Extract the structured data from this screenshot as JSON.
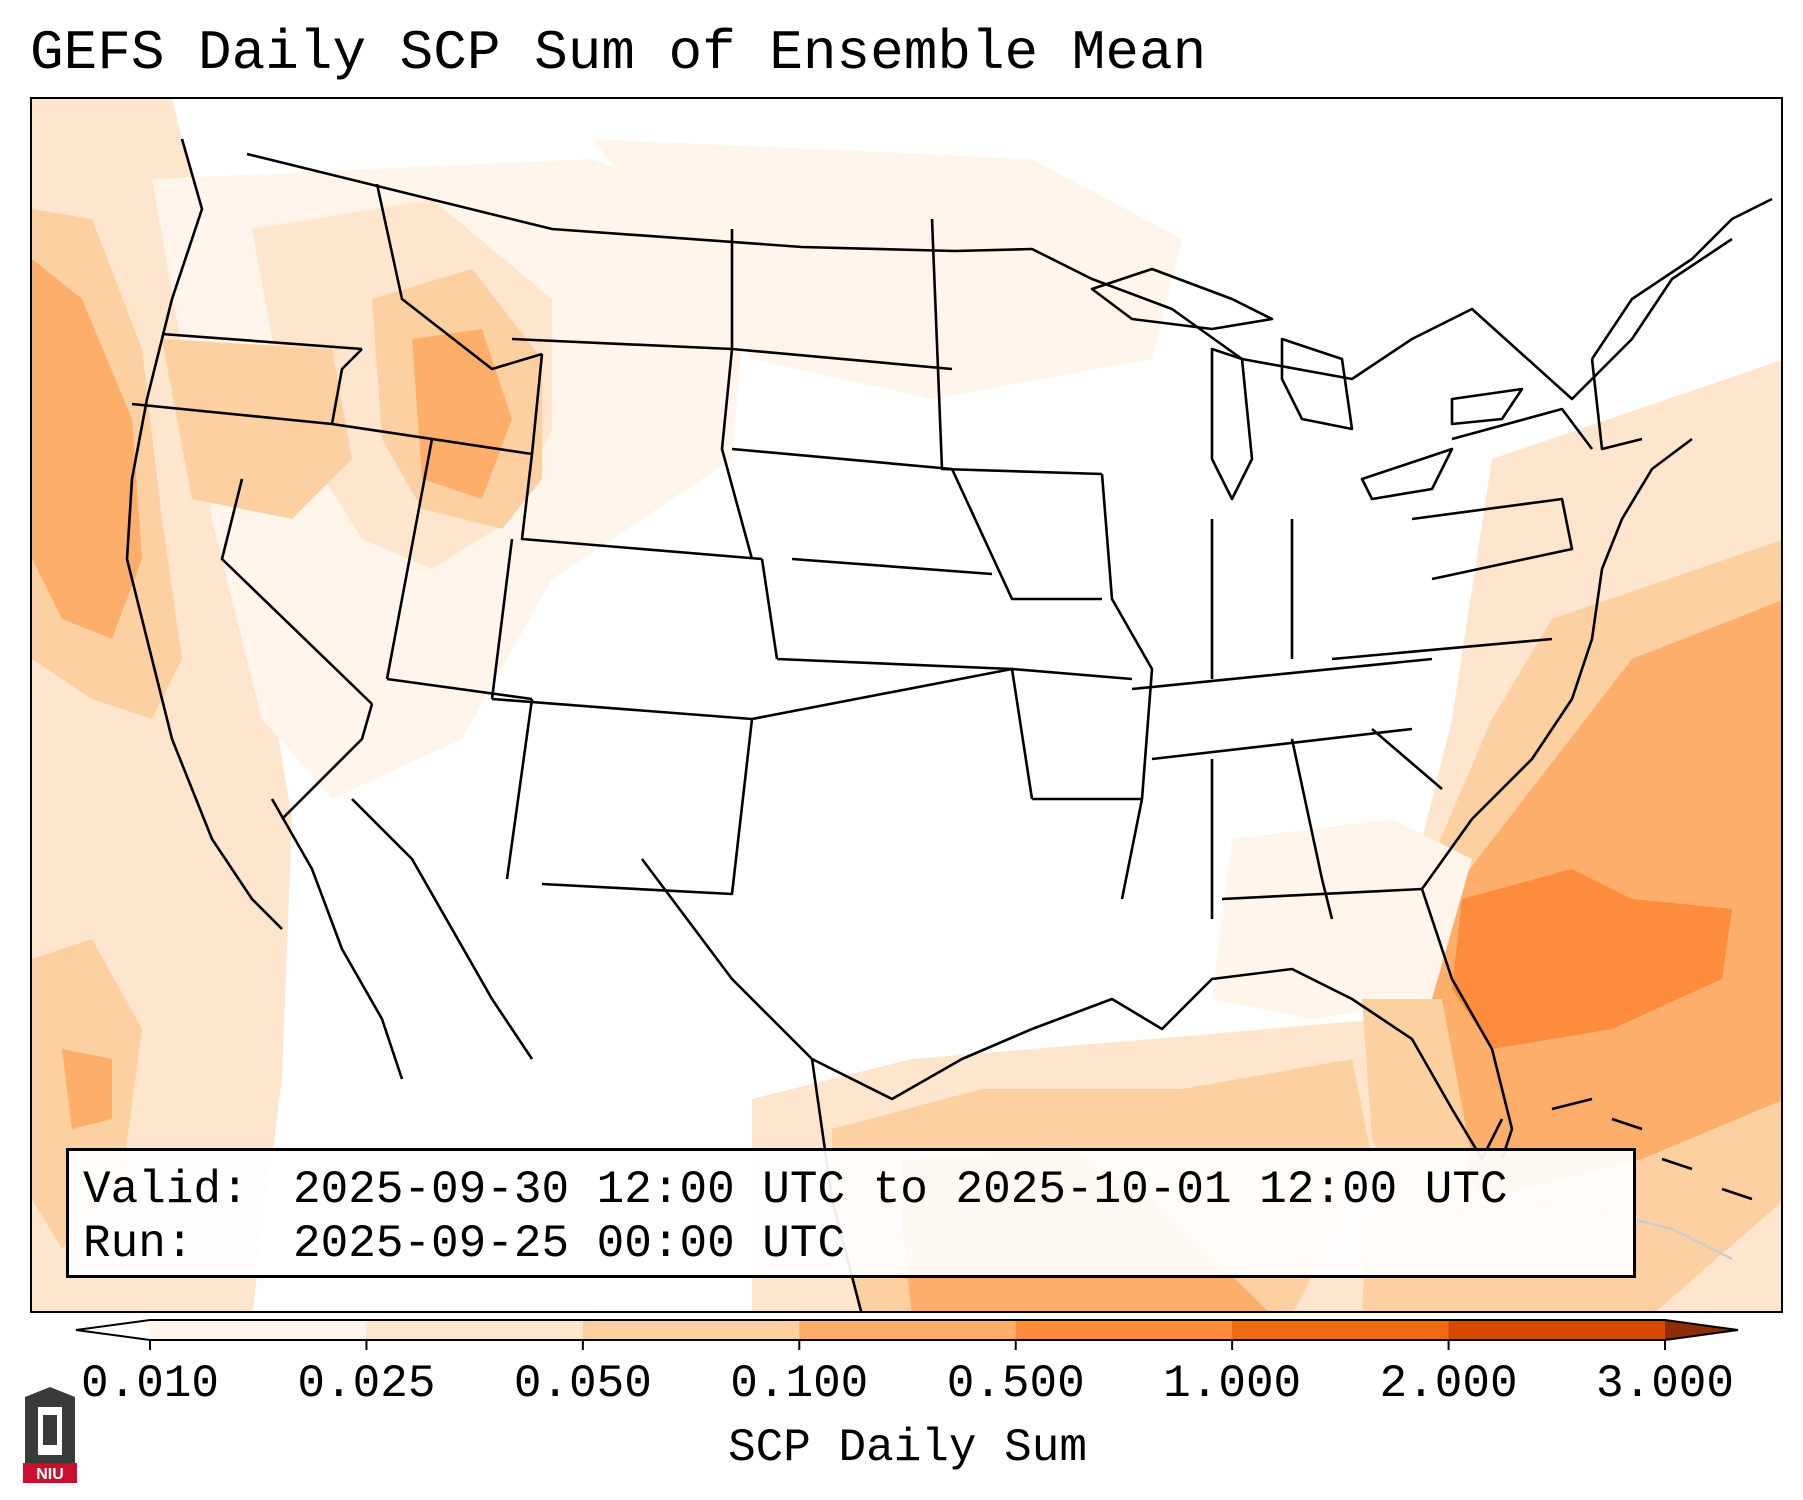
{
  "title": "GEFS Daily SCP Sum of Ensemble Mean",
  "info": {
    "valid_key": "Valid:",
    "valid_value": "2025-09-30 12:00 UTC to 2025-10-01 12:00 UTC",
    "run_key": "Run:",
    "run_value": "2025-09-25 00:00 UTC"
  },
  "colorbar": {
    "label": "SCP Daily Sum",
    "ticks": [
      "0.010",
      "0.025",
      "0.050",
      "0.100",
      "0.500",
      "1.000",
      "2.000",
      "3.000"
    ],
    "colors": [
      "#fff5eb",
      "#fee6ce",
      "#fdd0a2",
      "#fdae6b",
      "#fd8d3c",
      "#f16913",
      "#d94801"
    ],
    "under_color": "#ffffff",
    "over_color": "#8c2d04",
    "extend": "both"
  },
  "logo": {
    "text": "NIU",
    "color": "#c8102e"
  }
}
